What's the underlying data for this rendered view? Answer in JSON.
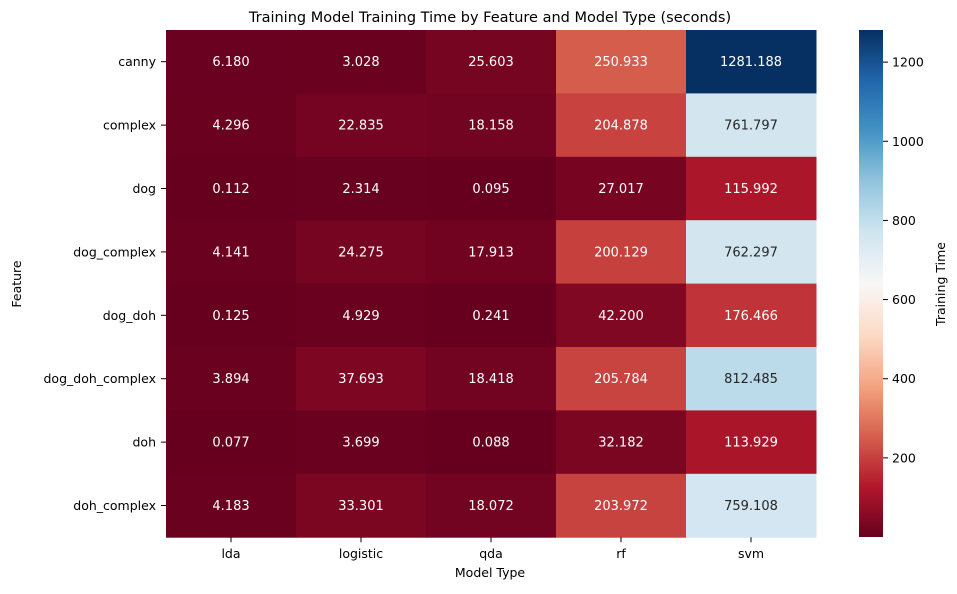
{
  "chart_data": {
    "type": "heatmap",
    "title": "Training Model Training Time by Feature and Model Type (seconds)",
    "xlabel": "Model Type",
    "ylabel": "Feature",
    "colorbar_label": "Training Time",
    "colormap": "RdBu",
    "value_range": [
      0.077,
      1281.188
    ],
    "colorbar_ticks": [
      200,
      400,
      600,
      800,
      1000,
      1200
    ],
    "x_categories": [
      "lda",
      "logistic",
      "qda",
      "rf",
      "svm"
    ],
    "y_categories": [
      "canny",
      "complex",
      "dog",
      "dog_complex",
      "dog_doh",
      "dog_doh_complex",
      "doh",
      "doh_complex"
    ],
    "values": [
      [
        6.18,
        3.028,
        25.603,
        250.933,
        1281.188
      ],
      [
        4.296,
        22.835,
        18.158,
        204.878,
        761.797
      ],
      [
        0.112,
        2.314,
        0.095,
        27.017,
        115.992
      ],
      [
        4.141,
        24.275,
        17.913,
        200.129,
        762.297
      ],
      [
        0.125,
        4.929,
        0.241,
        42.2,
        176.466
      ],
      [
        3.894,
        37.693,
        18.418,
        205.784,
        812.485
      ],
      [
        0.077,
        3.699,
        0.088,
        32.182,
        113.929
      ],
      [
        4.183,
        33.301,
        18.072,
        203.972,
        759.108
      ]
    ],
    "value_format": "3 decimals"
  }
}
